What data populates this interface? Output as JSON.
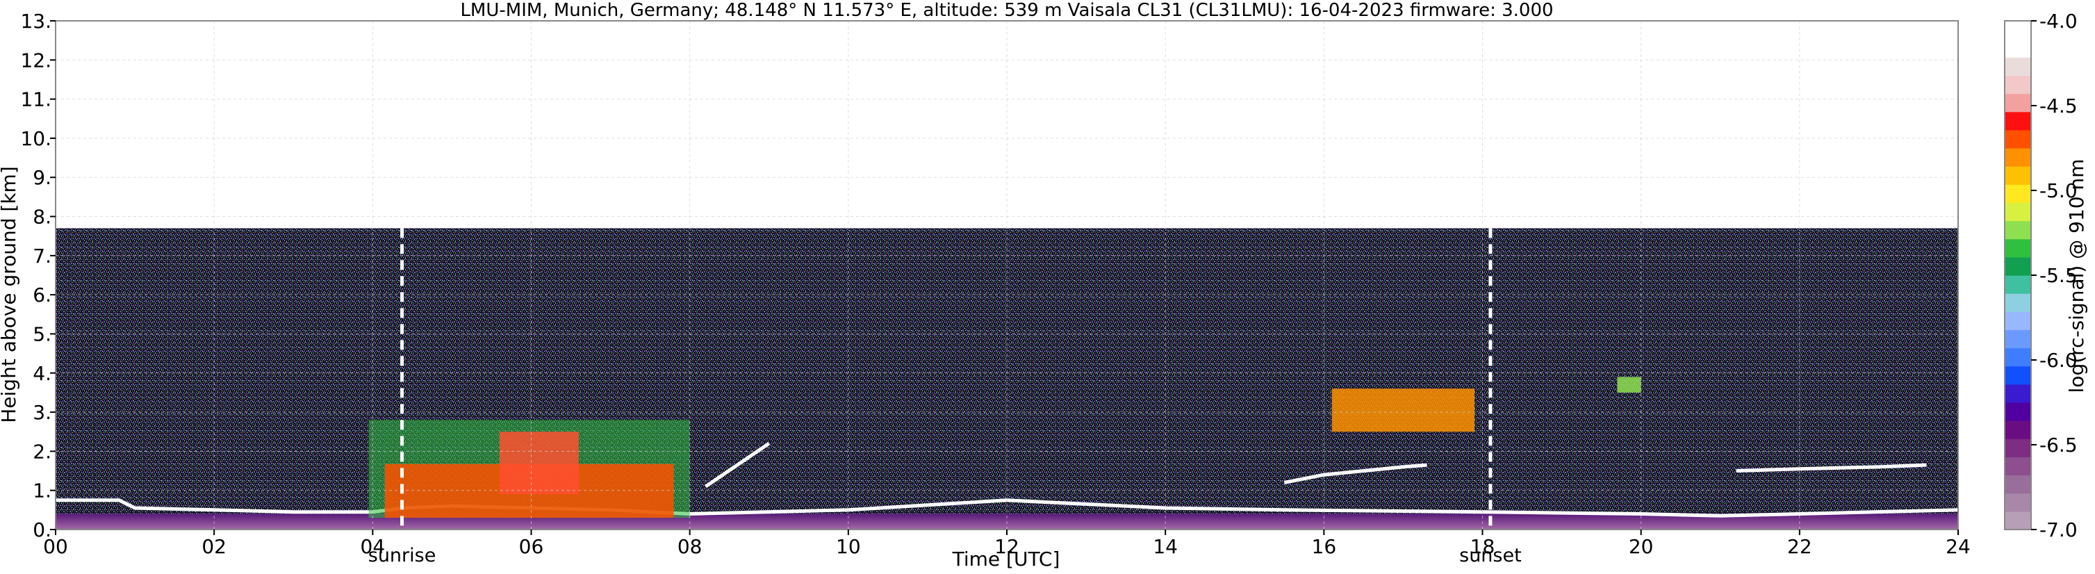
{
  "chart_data": {
    "type": "heatmap",
    "title": "LMU-MIM, Munich, Germany; 48.148° N 11.573° E, altitude: 539 m    Vaisala CL31 (CL31LMU): 16-04-2023    firmware: 3.000",
    "xlabel": "Time [UTC]",
    "ylabel": "Height above ground [km]",
    "xlim": [
      0,
      24
    ],
    "ylim": [
      0,
      13
    ],
    "x_ticks": [
      0,
      2,
      4,
      6,
      8,
      10,
      12,
      14,
      16,
      18,
      20,
      22,
      24
    ],
    "x_tick_labels": [
      "00",
      "02",
      "04",
      "06",
      "08",
      "10",
      "12",
      "14",
      "16",
      "18",
      "20",
      "22",
      "24"
    ],
    "y_ticks": [
      0,
      1,
      2,
      3,
      4,
      5,
      6,
      7,
      8,
      9,
      10,
      11,
      12,
      13
    ],
    "y_tick_labels": [
      "0.",
      "1.",
      "2.",
      "3.",
      "4.",
      "5.",
      "6.",
      "7.",
      "8.",
      "9.",
      "10.",
      "11.",
      "12.",
      "13."
    ],
    "grid": true,
    "data_top_km": 7.7,
    "markers": [
      {
        "label": "sunrise",
        "x": 4.37
      },
      {
        "label": "sunset",
        "x": 18.1
      }
    ],
    "colorbar": {
      "label": "log(rc-signal) @ 910 nm",
      "range": [
        -7.0,
        -4.0
      ],
      "ticks": [
        -7.0,
        -6.5,
        -6.0,
        -5.5,
        -5.0,
        -4.5,
        -4.0
      ],
      "tick_labels": [
        "-7.0",
        "-6.5",
        "-6.0",
        "-5.5",
        "-5.0",
        "-4.5",
        "-4.0"
      ],
      "colors": [
        "#b89fb8",
        "#a888a8",
        "#9a6e9a",
        "#8d4f8d",
        "#7d2d82",
        "#6a0d83",
        "#5000a0",
        "#3a1bd0",
        "#1050ff",
        "#3f7dff",
        "#6b9aff",
        "#97b8ff",
        "#8ed0e0",
        "#3fc0a0",
        "#10a050",
        "#2fc040",
        "#8ee050",
        "#d8f040",
        "#ffe820",
        "#ffc000",
        "#ff9000",
        "#ff5000",
        "#ff1010",
        "#f3a0a0",
        "#f2c8c8",
        "#ebdcdc",
        "#ffffff",
        "#ffffff"
      ]
    },
    "features": [
      {
        "name": "surface layer",
        "x0": 0.0,
        "x1": 24.0,
        "y0": 0.0,
        "y1": 0.4
      },
      {
        "name": "boundary layer top",
        "points": [
          [
            0.0,
            0.75
          ],
          [
            0.8,
            0.75
          ],
          [
            1.0,
            0.55
          ],
          [
            2.0,
            0.5
          ],
          [
            3.0,
            0.45
          ],
          [
            4.0,
            0.45
          ],
          [
            4.4,
            0.55
          ],
          [
            5.0,
            0.6
          ],
          [
            6.0,
            0.55
          ],
          [
            7.0,
            0.5
          ],
          [
            8.0,
            0.4
          ],
          [
            10.0,
            0.5
          ],
          [
            12.0,
            0.75
          ],
          [
            12.5,
            0.7
          ],
          [
            14.0,
            0.55
          ],
          [
            15.5,
            0.5
          ],
          [
            18.0,
            0.45
          ],
          [
            20.0,
            0.4
          ],
          [
            21.0,
            0.35
          ],
          [
            24.0,
            0.5
          ]
        ]
      },
      {
        "name": "strong aerosol layer 04-08 UTC",
        "x0": 3.95,
        "x1": 8.0,
        "y0": 0.3,
        "y1": 2.8
      },
      {
        "name": "morning aerosol plume",
        "x0": 5.6,
        "x1": 6.6,
        "y0": 0.9,
        "y1": 2.5
      },
      {
        "name": "cloud layer 08-09 UTC",
        "points": [
          [
            8.2,
            1.1
          ],
          [
            9.0,
            2.2
          ]
        ]
      },
      {
        "name": "evening elevated layer",
        "points": [
          [
            15.5,
            1.2
          ],
          [
            16.0,
            1.4
          ],
          [
            17.0,
            1.6
          ],
          [
            17.3,
            1.65
          ]
        ]
      },
      {
        "name": "cloud 17 UTC",
        "x0": 16.1,
        "x1": 17.9,
        "y0": 2.5,
        "y1": 3.6
      },
      {
        "name": "night elevated layer",
        "points": [
          [
            21.2,
            1.5
          ],
          [
            22.0,
            1.55
          ],
          [
            23.0,
            1.6
          ],
          [
            23.6,
            1.65
          ]
        ]
      },
      {
        "name": "small cloud 20 UTC",
        "x0": 19.7,
        "x1": 20.0,
        "y0": 3.5,
        "y1": 3.9
      }
    ]
  }
}
